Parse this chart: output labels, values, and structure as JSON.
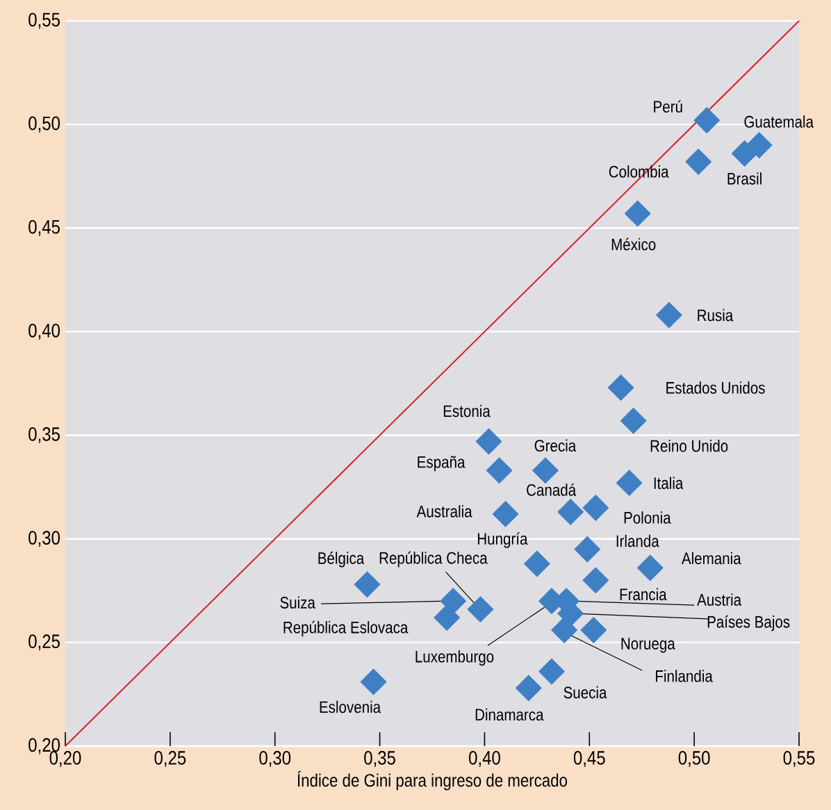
{
  "chart_data": {
    "type": "scatter",
    "xlabel": "Índice de Gini para ingreso de mercado",
    "xlim": [
      0.2,
      0.55
    ],
    "ylim": [
      0.2,
      0.55
    ],
    "xticks": [
      {
        "value": 0.2,
        "label": "0,20"
      },
      {
        "value": 0.25,
        "label": "0,25"
      },
      {
        "value": 0.3,
        "label": "0,30"
      },
      {
        "value": 0.35,
        "label": "0,35"
      },
      {
        "value": 0.4,
        "label": "0,40"
      },
      {
        "value": 0.45,
        "label": "0,45"
      },
      {
        "value": 0.5,
        "label": "0,50"
      },
      {
        "value": 0.55,
        "label": "0,55"
      }
    ],
    "yticks": [
      {
        "value": 0.2,
        "label": "0,20"
      },
      {
        "value": 0.25,
        "label": "0,25"
      },
      {
        "value": 0.3,
        "label": "0,30"
      },
      {
        "value": 0.35,
        "label": "0,35"
      },
      {
        "value": 0.4,
        "label": "0,40"
      },
      {
        "value": 0.45,
        "label": "0,45"
      },
      {
        "value": 0.5,
        "label": "0,50"
      },
      {
        "value": 0.55,
        "label": "0,55"
      }
    ],
    "grid": "y",
    "marker": "diamond",
    "series": [
      {
        "type": "line",
        "marker": "none",
        "color": "#d62027",
        "x": [
          0.2,
          0.55
        ],
        "values": [
          0.2,
          0.55
        ]
      },
      {
        "color": "#3f7fc4",
        "x": [
          0.506,
          0.531,
          0.502,
          0.524,
          0.473,
          0.488,
          0.465,
          0.471,
          0.402,
          0.407,
          0.429,
          0.441,
          0.469,
          0.41,
          0.453,
          0.425,
          0.449,
          0.344,
          0.398,
          0.479,
          0.453,
          0.439,
          0.385,
          0.441,
          0.382,
          0.452,
          0.432,
          0.438,
          0.432,
          0.421,
          0.347
        ],
        "values": [
          0.502,
          0.49,
          0.482,
          0.486,
          0.457,
          0.408,
          0.373,
          0.357,
          0.347,
          0.333,
          0.333,
          0.313,
          0.327,
          0.312,
          0.315,
          0.288,
          0.295,
          0.278,
          0.266,
          0.286,
          0.28,
          0.27,
          0.27,
          0.264,
          0.262,
          0.256,
          0.27,
          0.256,
          0.236,
          0.228,
          0.231
        ]
      }
    ],
    "annotations": [
      {
        "text": "Perú",
        "x": 0.506,
        "y": 0.502
      },
      {
        "text": "Guatemala",
        "x": 0.531,
        "y": 0.49
      },
      {
        "text": "Colombia",
        "x": 0.502,
        "y": 0.482
      },
      {
        "text": "Brasil",
        "x": 0.524,
        "y": 0.486
      },
      {
        "text": "México",
        "x": 0.473,
        "y": 0.457
      },
      {
        "text": "Rusia",
        "x": 0.488,
        "y": 0.408
      },
      {
        "text": "Estados Unidos",
        "x": 0.465,
        "y": 0.373
      },
      {
        "text": "Reino Unido",
        "x": 0.471,
        "y": 0.357
      },
      {
        "text": "Estonia",
        "x": 0.402,
        "y": 0.347
      },
      {
        "text": "España",
        "x": 0.407,
        "y": 0.333
      },
      {
        "text": "Grecia",
        "x": 0.429,
        "y": 0.333
      },
      {
        "text": "Canadá",
        "x": 0.441,
        "y": 0.313
      },
      {
        "text": "Italia",
        "x": 0.469,
        "y": 0.327
      },
      {
        "text": "Australia",
        "x": 0.41,
        "y": 0.312
      },
      {
        "text": "Polonia",
        "x": 0.453,
        "y": 0.315
      },
      {
        "text": "Hungría",
        "x": 0.425,
        "y": 0.288
      },
      {
        "text": "Irlanda",
        "x": 0.449,
        "y": 0.295
      },
      {
        "text": "Bélgica",
        "x": 0.344,
        "y": 0.278
      },
      {
        "text": "República Checa",
        "x": 0.398,
        "y": 0.266
      },
      {
        "text": "Alemania",
        "x": 0.479,
        "y": 0.286
      },
      {
        "text": "Francia",
        "x": 0.453,
        "y": 0.28
      },
      {
        "text": "Austria",
        "x": 0.439,
        "y": 0.27
      },
      {
        "text": "Suiza",
        "x": 0.385,
        "y": 0.27
      },
      {
        "text": "Países Bajos",
        "x": 0.441,
        "y": 0.264
      },
      {
        "text": "República Eslovaca",
        "x": 0.382,
        "y": 0.262
      },
      {
        "text": "Noruega",
        "x": 0.452,
        "y": 0.256
      },
      {
        "text": "Luxemburgo",
        "x": 0.432,
        "y": 0.27
      },
      {
        "text": "Finlandia",
        "x": 0.438,
        "y": 0.256
      },
      {
        "text": "Suecia",
        "x": 0.432,
        "y": 0.236
      },
      {
        "text": "Dinamarca",
        "x": 0.421,
        "y": 0.228
      },
      {
        "text": "Eslovenia",
        "x": 0.347,
        "y": 0.231
      }
    ]
  }
}
